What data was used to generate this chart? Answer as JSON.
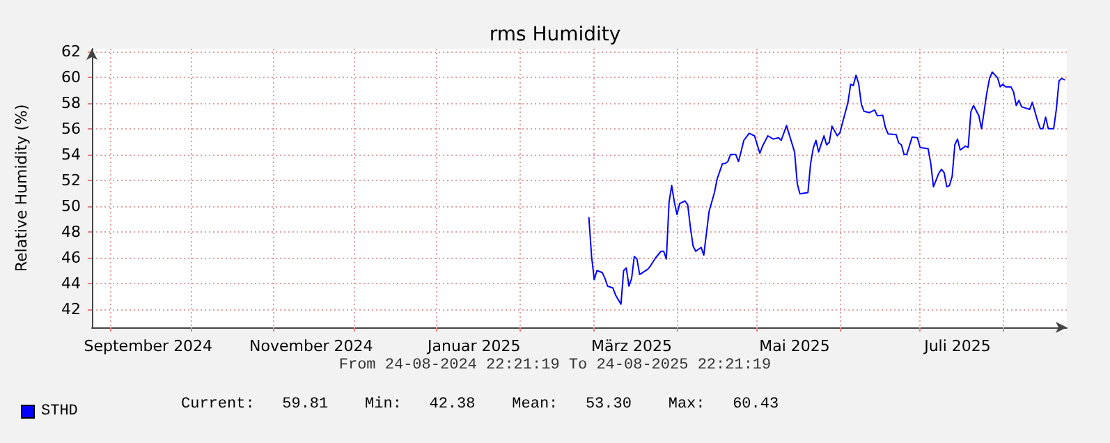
{
  "chart_data": {
    "type": "line",
    "title": "rms Humidity",
    "xlabel": "From 24-08-2024 22:21:19 To 24-08-2025 22:21:19",
    "ylabel": "Relative Humidity (%)",
    "annotations": [
      "Current:   59.81    Min:   42.38    Mean:   53.30    Max:   60.43"
    ],
    "xlim": [
      "2024-08-24T22:21",
      "2025-08-24T22:21"
    ],
    "xticks": [
      {
        "value": "2024-09-01",
        "label": null
      },
      {
        "value": "2024-09-15",
        "label": "September 2024"
      },
      {
        "value": "2024-10-01",
        "label": null
      },
      {
        "value": "2024-11-01",
        "label": null
      },
      {
        "value": "2024-11-15",
        "label": "November 2024"
      },
      {
        "value": "2024-12-01",
        "label": null
      },
      {
        "value": "2025-01-01",
        "label": null
      },
      {
        "value": "2025-01-15",
        "label": "Januar 2025"
      },
      {
        "value": "2025-02-01",
        "label": null
      },
      {
        "value": "2025-03-01",
        "label": null
      },
      {
        "value": "2025-03-15",
        "label": "März 2025"
      },
      {
        "value": "2025-04-01",
        "label": null
      },
      {
        "value": "2025-05-01",
        "label": null
      },
      {
        "value": "2025-05-15",
        "label": "Mai 2025"
      },
      {
        "value": "2025-06-01",
        "label": null
      },
      {
        "value": "2025-07-01",
        "label": null
      },
      {
        "value": "2025-07-15",
        "label": "Juli 2025"
      },
      {
        "value": "2025-08-01",
        "label": null
      }
    ],
    "ylim": [
      40.6,
      62.2
    ],
    "yticks": [
      42,
      44,
      46,
      48,
      50,
      52,
      54,
      56,
      58,
      60,
      62
    ],
    "grid": true,
    "legend": "bottom left",
    "marker": "none",
    "line_style": "solid",
    "series": [
      {
        "name": "STHD",
        "color": "#0000ff",
        "x": [
          "2025-02-27",
          "2025-02-28",
          "2025-03-01",
          "2025-03-02",
          "2025-03-04",
          "2025-03-05",
          "2025-03-06",
          "2025-03-08",
          "2025-03-09",
          "2025-03-11",
          "2025-03-12",
          "2025-03-13",
          "2025-03-14",
          "2025-03-15",
          "2025-03-16",
          "2025-03-17",
          "2025-03-18",
          "2025-03-21",
          "2025-03-22",
          "2025-03-24",
          "2025-03-26",
          "2025-03-27",
          "2025-03-28",
          "2025-03-29",
          "2025-03-30",
          "2025-03-31",
          "2025-04-01",
          "2025-04-02",
          "2025-04-04",
          "2025-04-05",
          "2025-04-06",
          "2025-04-07",
          "2025-04-08",
          "2025-04-10",
          "2025-04-11",
          "2025-04-13",
          "2025-04-15",
          "2025-04-16",
          "2025-04-18",
          "2025-04-19",
          "2025-04-20",
          "2025-04-21",
          "2025-04-23",
          "2025-04-24",
          "2025-04-25",
          "2025-04-26",
          "2025-04-28",
          "2025-04-30",
          "2025-05-02",
          "2025-05-03",
          "2025-05-05",
          "2025-05-07",
          "2025-05-09",
          "2025-05-10",
          "2025-05-12",
          "2025-05-13",
          "2025-05-15",
          "2025-05-16",
          "2025-05-17",
          "2025-05-20",
          "2025-05-21",
          "2025-05-22",
          "2025-05-23",
          "2025-05-24",
          "2025-05-26",
          "2025-05-27",
          "2025-05-28",
          "2025-05-29",
          "2025-05-31",
          "2025-06-01",
          "2025-06-02",
          "2025-06-04",
          "2025-06-05",
          "2025-06-06",
          "2025-06-07",
          "2025-06-08",
          "2025-06-09",
          "2025-06-10",
          "2025-06-12",
          "2025-06-14",
          "2025-06-15",
          "2025-06-17",
          "2025-06-18",
          "2025-06-19",
          "2025-06-22",
          "2025-06-23",
          "2025-06-24",
          "2025-06-25",
          "2025-06-26",
          "2025-06-28",
          "2025-06-30",
          "2025-07-01",
          "2025-07-04",
          "2025-07-05",
          "2025-07-06",
          "2025-07-08",
          "2025-07-09",
          "2025-07-10",
          "2025-07-11",
          "2025-07-12",
          "2025-07-13",
          "2025-07-14",
          "2025-07-15",
          "2025-07-16",
          "2025-07-18",
          "2025-07-19",
          "2025-07-20",
          "2025-07-21",
          "2025-07-23",
          "2025-07-24",
          "2025-07-25",
          "2025-07-26",
          "2025-07-27",
          "2025-07-28",
          "2025-07-30",
          "2025-07-31",
          "2025-08-01",
          "2025-08-02",
          "2025-08-04",
          "2025-08-05",
          "2025-08-06",
          "2025-08-07",
          "2025-08-08",
          "2025-08-11",
          "2025-08-12",
          "2025-08-14",
          "2025-08-15",
          "2025-08-16",
          "2025-08-17",
          "2025-08-18",
          "2025-08-20",
          "2025-08-21",
          "2025-08-22",
          "2025-08-23",
          "2025-08-24"
        ],
        "values": [
          49.1,
          46.1,
          44.3,
          45.0,
          44.85,
          44.4,
          43.8,
          43.65,
          43.1,
          42.4,
          45.0,
          45.2,
          43.8,
          44.4,
          46.1,
          45.9,
          44.7,
          45.1,
          45.35,
          46.0,
          46.5,
          46.5,
          45.9,
          50.3,
          51.6,
          50.3,
          49.35,
          50.2,
          50.4,
          50.1,
          48.35,
          46.9,
          46.5,
          46.8,
          46.2,
          49.6,
          51.05,
          52.1,
          53.3,
          53.3,
          53.45,
          54.0,
          54.0,
          53.45,
          54.25,
          55.1,
          55.65,
          55.45,
          54.1,
          54.65,
          55.45,
          55.2,
          55.3,
          55.1,
          56.25,
          55.55,
          54.2,
          51.75,
          50.95,
          51.05,
          53.3,
          54.5,
          55.1,
          54.2,
          55.45,
          54.75,
          54.95,
          56.2,
          55.45,
          55.7,
          56.5,
          58.05,
          59.45,
          59.35,
          60.15,
          59.5,
          57.9,
          57.35,
          57.25,
          57.45,
          57.0,
          57.05,
          56.1,
          55.6,
          55.55,
          54.9,
          54.75,
          54.0,
          54.0,
          55.35,
          55.3,
          54.55,
          54.45,
          53.3,
          51.5,
          52.55,
          52.85,
          52.6,
          51.5,
          51.6,
          52.3,
          54.75,
          55.2,
          54.35,
          54.65,
          54.55,
          57.3,
          57.8,
          57.0,
          56.0,
          57.4,
          58.8,
          59.9,
          60.4,
          59.95,
          59.25,
          59.45,
          59.25,
          59.25,
          58.85,
          57.8,
          58.2,
          57.7,
          57.5,
          58.05,
          56.6,
          56.0,
          56.0,
          56.9,
          56.0,
          56.0,
          57.5,
          59.7,
          59.9,
          59.8
        ]
      }
    ]
  }
}
